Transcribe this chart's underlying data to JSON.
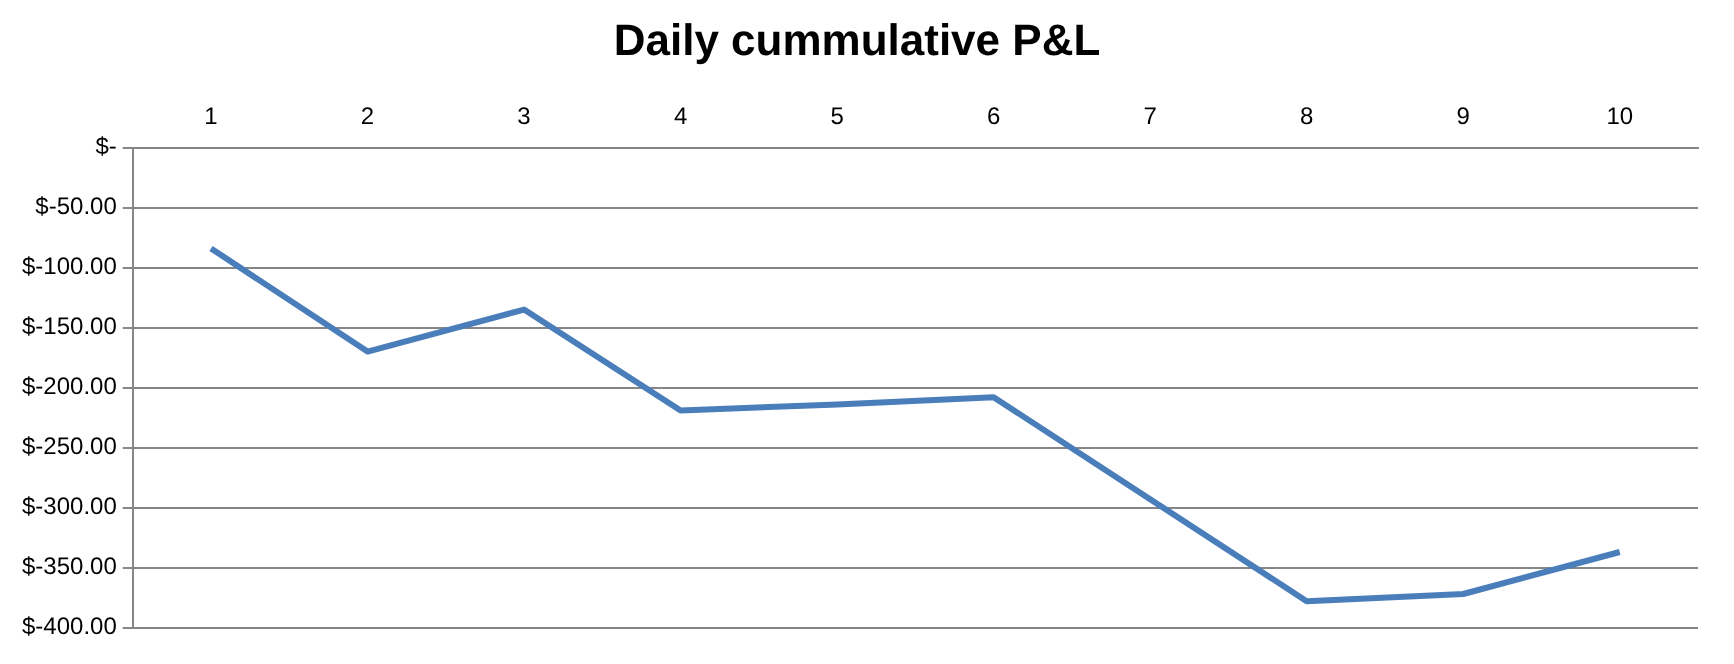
{
  "chart_data": {
    "type": "line",
    "title": "Daily cummulative P&L",
    "categories": [
      "1",
      "2",
      "3",
      "4",
      "5",
      "6",
      "7",
      "8",
      "9",
      "10"
    ],
    "series": [
      {
        "color": "#4a7ebb",
        "values": [
          -84,
          -170,
          -135,
          -219,
          -214,
          -208,
          -293,
          -378,
          -372,
          -337
        ]
      }
    ],
    "ylim": [
      -400,
      0
    ],
    "yticks": [
      {
        "value": 0,
        "label": "$-"
      },
      {
        "value": -50,
        "label": "$-50.00"
      },
      {
        "value": -100,
        "label": "$-100.00"
      },
      {
        "value": -150,
        "label": "$-150.00"
      },
      {
        "value": -200,
        "label": "$-200.00"
      },
      {
        "value": -250,
        "label": "$-250.00"
      },
      {
        "value": -300,
        "label": "$-300.00"
      },
      {
        "value": -350,
        "label": "$-350.00"
      },
      {
        "value": -400,
        "label": "$-400.00"
      }
    ],
    "grid": "y",
    "legend": false,
    "marker": "none",
    "line_style": "solid"
  }
}
